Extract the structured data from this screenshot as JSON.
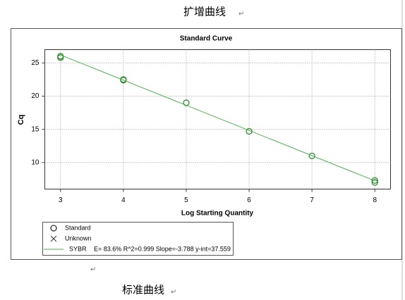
{
  "caption_top": "扩增曲线",
  "caption_bottom": "标准曲线",
  "paragraph_mark": "↵",
  "chart_data": {
    "type": "scatter",
    "title": "Standard Curve",
    "x_label": "Log Starting Quantity",
    "y_label": "Cq",
    "xlim": [
      2.75,
      8.25
    ],
    "xticks": [
      3,
      4,
      5,
      6,
      7,
      8
    ],
    "ylim": [
      6,
      27
    ],
    "yticks": [
      10,
      15,
      20,
      25
    ],
    "grid": true,
    "series": [
      {
        "name": "Standard",
        "marker": "circle",
        "color": "#2e8b2e",
        "x": [
          3,
          3,
          4,
          4,
          5,
          6,
          7,
          8,
          8
        ],
        "values": [
          26.0,
          25.8,
          22.5,
          22.4,
          19.0,
          14.7,
          11.0,
          7.3,
          7.0
        ]
      },
      {
        "name": "Unknown",
        "marker": "x",
        "color": "#000000",
        "x": [],
        "values": []
      },
      {
        "name": "SYBR",
        "marker": "line",
        "color": "#4caf50",
        "label": "E= 83.6% R^2=0.999 Slope=-3.788 y-int=37.559",
        "x": [
          3,
          8
        ],
        "values": [
          26.2,
          7.25
        ]
      }
    ]
  }
}
